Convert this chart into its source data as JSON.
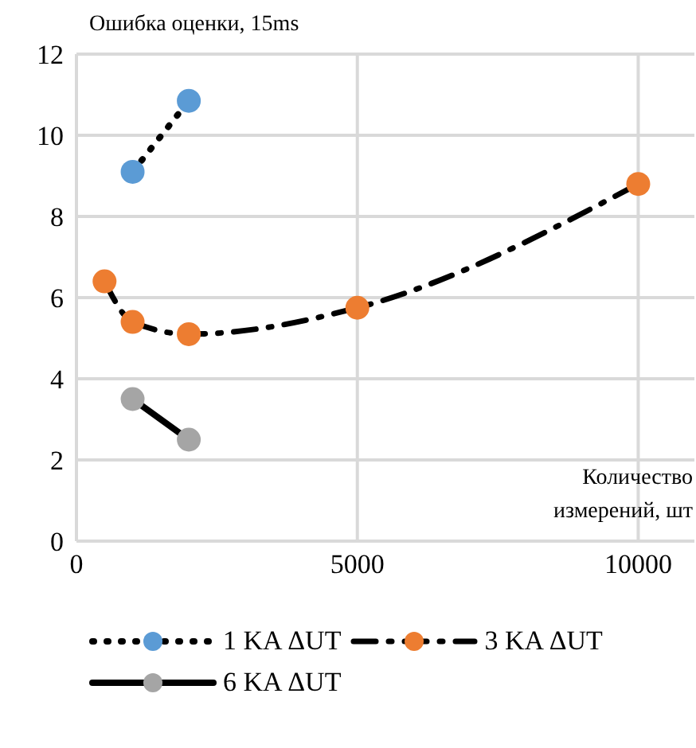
{
  "chart_data": {
    "type": "line",
    "xlabel": "Количество измерений, шт",
    "ylabel": "Ошибка оценки, 15ms",
    "xlim": [
      0,
      11000
    ],
    "xticks": [
      0,
      5000,
      10000
    ],
    "ylim": [
      0,
      12
    ],
    "yticks": [
      0,
      2,
      4,
      6,
      8,
      10,
      12
    ],
    "grid": true,
    "legend": "bottom",
    "marker": "circle",
    "series": [
      {
        "name": "1 KA ΔUT",
        "color": "#5b9bd5",
        "line_style": "dotted",
        "x": [
          1000,
          2000
        ],
        "values": [
          9.1,
          10.85
        ]
      },
      {
        "name": "3 KA ΔUT",
        "color": "#ed7d31",
        "line_style": "dashed",
        "x": [
          500,
          1000,
          2000,
          5000,
          10000
        ],
        "values": [
          6.4,
          5.4,
          5.1,
          5.75,
          8.8
        ]
      },
      {
        "name": "6 KA ΔUT",
        "color": "#a5a5a5",
        "line_style": "solid",
        "x": [
          1000,
          2000
        ],
        "values": [
          3.5,
          2.5
        ]
      }
    ]
  }
}
